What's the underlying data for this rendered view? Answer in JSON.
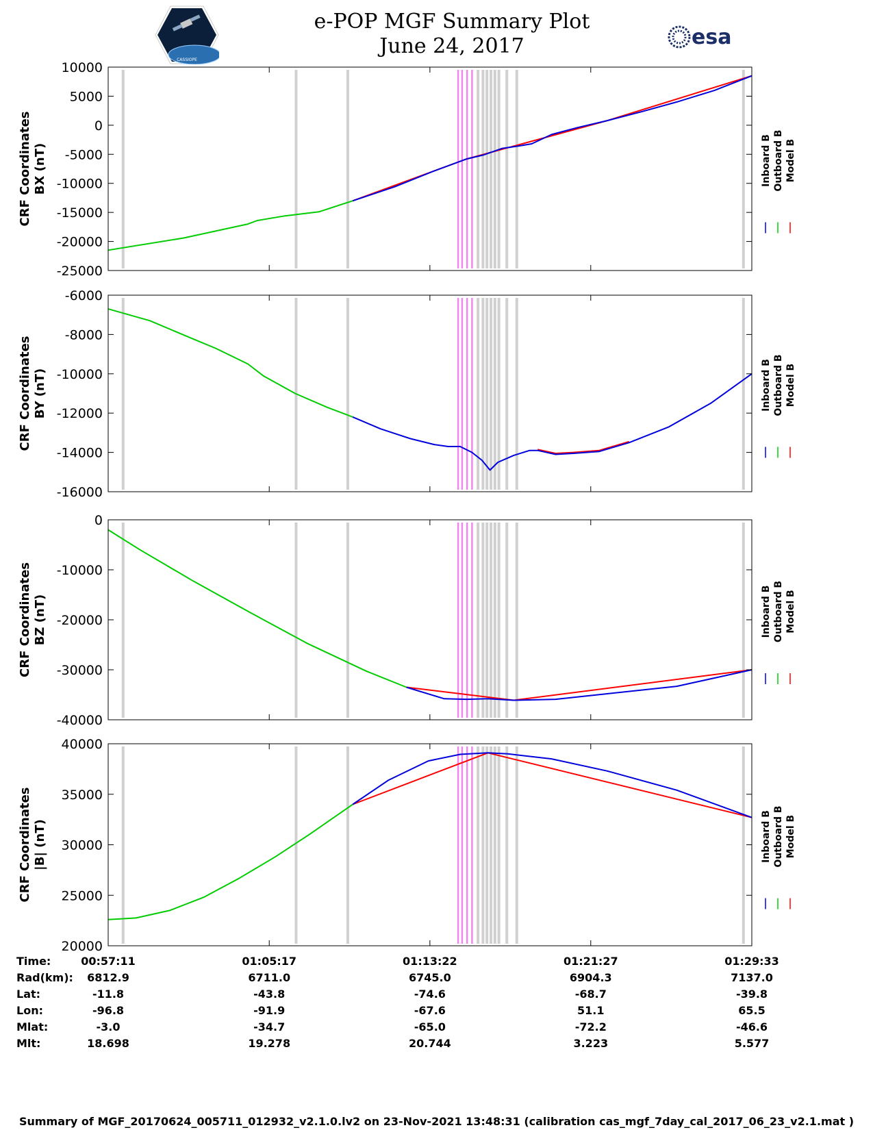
{
  "header": {
    "title_line1": "e-POP MGF Summary Plot",
    "title_line2": "June 24, 2017",
    "left_logo_text": "CASSIOPE",
    "right_logo_text": "esa"
  },
  "legend": {
    "entries": [
      "Inboard B",
      "Outboard B",
      "Model B"
    ],
    "colors": [
      "#0000dd",
      "#00cc00",
      "#ff0000"
    ]
  },
  "colors": {
    "gray_band": "#d0d0d0",
    "violet_band": "#ee88ee"
  },
  "chart_data": [
    {
      "type": "line",
      "ylabel_line1": "CRF Coordinates",
      "ylabel_line2": "BX (nT)",
      "ylim": [
        -25000,
        10000
      ],
      "yticks": [
        10000,
        5000,
        0,
        -5000,
        -10000,
        -15000,
        -20000,
        -25000
      ],
      "ytick_labels": [
        "10000",
        "5000",
        "0",
        "-5000",
        "-10000",
        "-15000",
        "-20000",
        "-25000"
      ],
      "xlim_minutes": [
        0,
        32.37
      ],
      "series": [
        {
          "name": "Outboard B",
          "x": [
            0,
            3.8,
            7.03,
            7.5,
            8.9,
            10.6,
            12.3
          ],
          "values": [
            -21500,
            -19400,
            -17000,
            -16400,
            -15600,
            -14900,
            -13000
          ]
        },
        {
          "name": "Inboard B",
          "x": [
            12.3,
            14.4,
            16.3,
            18.03,
            18.9,
            19.8,
            20.6,
            21.3,
            22.3,
            23.6,
            25.1,
            26.8,
            28.6,
            30.5,
            32.37
          ],
          "values": [
            -13000,
            -10600,
            -8000,
            -5800,
            -5100,
            -4000,
            -3600,
            -3200,
            -1600,
            -400,
            800,
            2300,
            4000,
            6000,
            8500
          ]
        },
        {
          "name": "Model B",
          "x": [
            12.3,
            18.03,
            25.1,
            32.37
          ],
          "values": [
            -13000,
            -5800,
            800,
            8500
          ]
        }
      ]
    },
    {
      "type": "line",
      "ylabel_line1": "CRF Coordinates",
      "ylabel_line2": "BY (nT)",
      "ylim": [
        -16000,
        -6000
      ],
      "yticks": [
        -6000,
        -8000,
        -10000,
        -12000,
        -14000,
        -16000
      ],
      "ytick_labels": [
        "-6000",
        "-8000",
        "-10000",
        "-12000",
        "-14000",
        "-16000"
      ],
      "xlim_minutes": [
        0,
        32.37
      ],
      "series": [
        {
          "name": "Outboard B",
          "x": [
            0,
            2.1,
            4.2,
            5.4,
            7.03,
            7.8,
            9.4,
            11.0,
            12.3
          ],
          "values": [
            -6700,
            -7300,
            -8200,
            -8700,
            -9500,
            -10100,
            -11000,
            -11700,
            -12200
          ]
        },
        {
          "name": "Inboard B",
          "x": [
            12.3,
            13.7,
            15.2,
            16.4,
            17.1,
            17.7,
            18.3,
            18.8,
            19.2,
            19.6,
            20.4,
            21.2,
            21.6,
            22.5,
            23.4,
            24.7,
            26.2,
            28.2,
            30.3,
            32.37
          ],
          "values": [
            -12200,
            -12800,
            -13300,
            -13600,
            -13700,
            -13700,
            -14000,
            -14400,
            -14900,
            -14500,
            -14150,
            -13900,
            -13900,
            -14100,
            -14050,
            -13950,
            -13500,
            -12700,
            -11500,
            -10000
          ]
        },
        {
          "name": "Model B",
          "x": [
            21.6,
            22.5,
            23.4,
            24.7,
            26.2
          ],
          "values": [
            -13850,
            -14050,
            -14000,
            -13900,
            -13450
          ]
        }
      ]
    },
    {
      "type": "line",
      "ylabel_line1": "CRF Coordinates",
      "ylabel_line2": "BZ (nT)",
      "ylim": [
        -40000,
        0
      ],
      "yticks": [
        0,
        -10000,
        -20000,
        -30000,
        -40000
      ],
      "ytick_labels": [
        "0",
        "-10000",
        "-20000",
        "-30000",
        "-40000"
      ],
      "xlim_minutes": [
        0,
        32.37
      ],
      "series": [
        {
          "name": "Outboard B",
          "x": [
            0,
            1.6,
            4.3,
            7.03,
            10.0,
            12.3,
            13.0,
            15.0
          ],
          "values": [
            -2000,
            -6000,
            -12300,
            -18300,
            -24700,
            -29000,
            -30300,
            -33500
          ]
        },
        {
          "name": "Inboard B",
          "x": [
            15.0,
            16.9,
            18.03,
            19.1,
            20.4,
            22.5,
            25.1,
            28.6,
            32.37
          ],
          "values": [
            -33500,
            -35800,
            -35900,
            -35800,
            -36100,
            -35900,
            -34800,
            -33300,
            -30000
          ]
        },
        {
          "name": "Model B",
          "x": [
            15.0,
            20.4,
            32.37
          ],
          "values": [
            -33500,
            -36100,
            -30000
          ]
        }
      ]
    },
    {
      "type": "line",
      "ylabel_line1": "CRF Coordinates",
      "ylabel_line2": "|B| (nT)",
      "ylim": [
        20000,
        40000
      ],
      "yticks": [
        40000,
        35000,
        30000,
        25000,
        20000
      ],
      "ytick_labels": [
        "40000",
        "35000",
        "30000",
        "25000",
        "20000"
      ],
      "xlim_minutes": [
        0,
        32.37
      ],
      "series": [
        {
          "name": "Outboard B",
          "x": [
            0,
            1.4,
            3.1,
            4.8,
            6.6,
            8.4,
            10.1,
            12.3
          ],
          "values": [
            22600,
            22750,
            23500,
            24800,
            26700,
            28800,
            31000,
            34000
          ]
        },
        {
          "name": "Inboard B",
          "x": [
            12.3,
            14.1,
            16.1,
            17.7,
            19.1,
            20.1,
            22.3,
            25.1,
            28.6,
            32.37
          ],
          "values": [
            34000,
            36400,
            38300,
            38950,
            39100,
            39000,
            38500,
            37300,
            35400,
            32700
          ]
        },
        {
          "name": "Model B",
          "x": [
            12.3,
            19.1,
            32.37
          ],
          "values": [
            34000,
            39100,
            32700
          ]
        }
      ]
    }
  ],
  "x_axis": {
    "tick_minutes": [
      0,
      8.1,
      16.18,
      24.27,
      32.37
    ],
    "info_labels": [
      "Time:",
      "Rad(km):",
      "Lat:",
      "Lon:",
      "Mlat:",
      "Mlt:"
    ],
    "time": [
      "00:57:11",
      "01:05:17",
      "01:13:22",
      "01:21:27",
      "01:29:33"
    ],
    "rad_km": [
      "6812.9",
      "6711.0",
      "6745.0",
      "6904.3",
      "7137.0"
    ],
    "lat": [
      "-11.8",
      "-43.8",
      "-74.6",
      "-68.7",
      "-39.8"
    ],
    "lon": [
      "-96.8",
      "-91.9",
      "-67.6",
      "51.1",
      "65.5"
    ],
    "mlat": [
      "-3.0",
      "-34.7",
      "-65.0",
      "-72.2",
      "-46.6"
    ],
    "mlt": [
      "18.698",
      "19.278",
      "20.744",
      "3.223",
      "5.577"
    ]
  },
  "gray_band_minutes": [
    0.75,
    9.45,
    12.05,
    18.6,
    18.85,
    19.05,
    19.25,
    19.45,
    19.65,
    20.05,
    20.55,
    31.95
  ],
  "violet_band_minutes": [
    17.6,
    17.8,
    18.05,
    18.3
  ],
  "footer": "Summary of MGF_20170624_005711_012932_v2.1.0.lv2 on 23-Nov-2021 13:48:31 (calibration cas_mgf_7day_cal_2017_06_23_v2.1.mat )"
}
